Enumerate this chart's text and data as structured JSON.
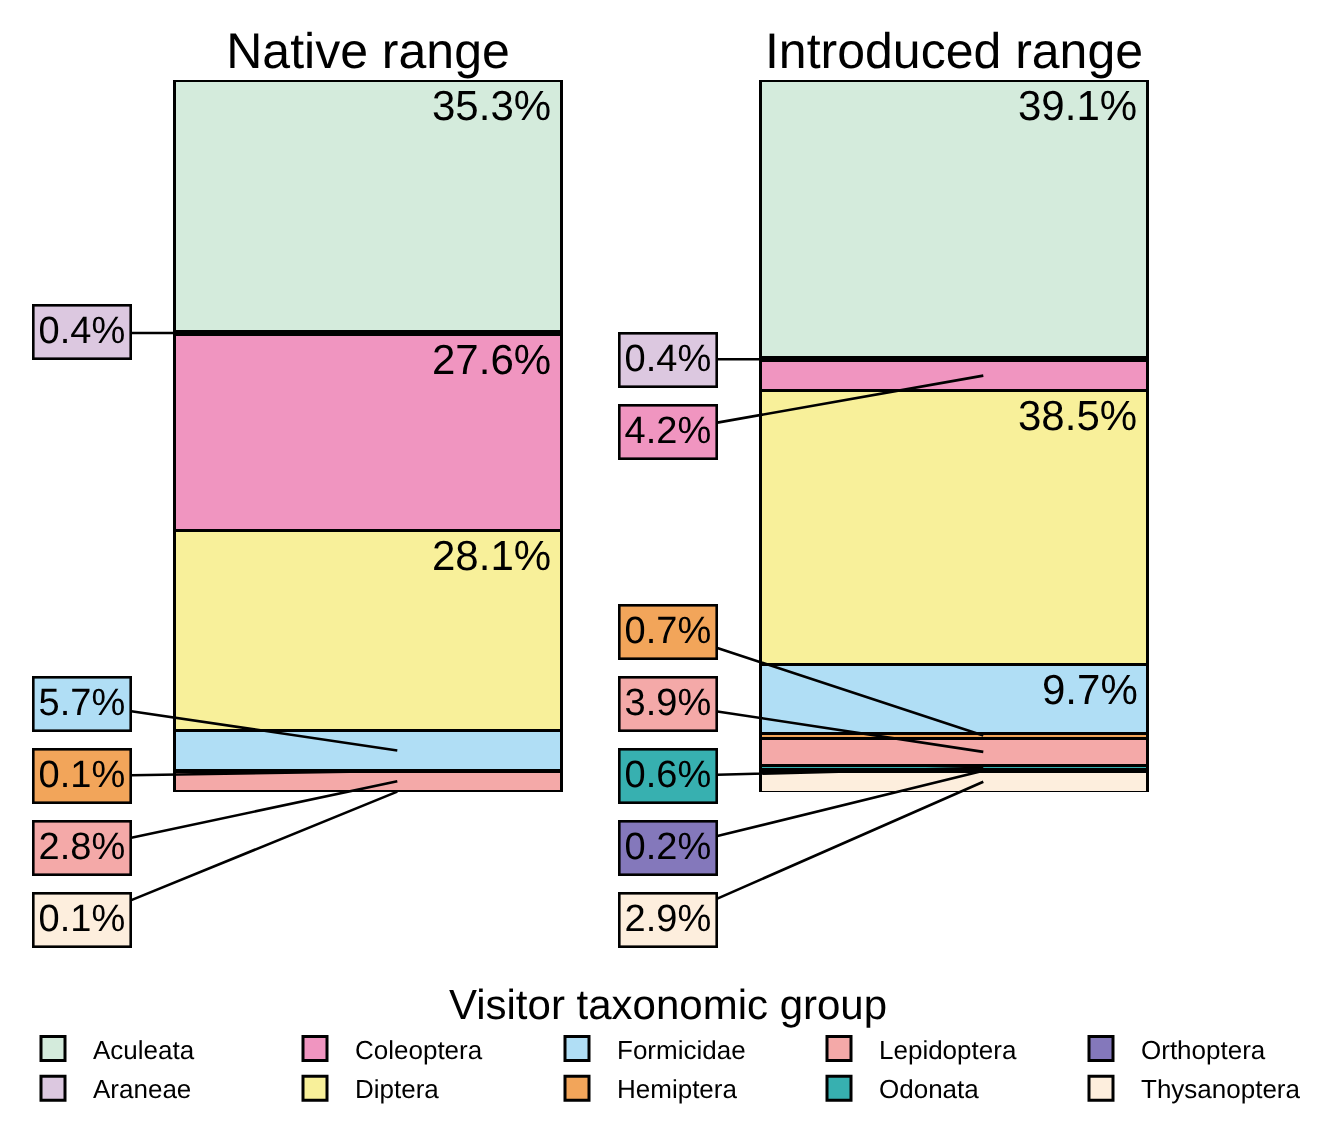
{
  "chart_data": {
    "type": "bar",
    "stacked": true,
    "legend": "bottom",
    "legend_title": "Visitor taxonomic group",
    "tick_labels": "x",
    "categories": [
      "Native range",
      "Introduced range"
    ],
    "series": [
      {
        "name": "Thysanoptera",
        "color": "#fdeedd",
        "values": [
          0.1,
          2.9
        ],
        "value_labels": [
          "0.1%",
          "2.9%"
        ]
      },
      {
        "name": "Orthoptera",
        "color": "#8478bb",
        "values": [
          null,
          0.2
        ],
        "value_labels": [
          null,
          "0.2%"
        ]
      },
      {
        "name": "Odonata",
        "color": "#37b0b0",
        "values": [
          null,
          0.6
        ],
        "value_labels": [
          null,
          "0.6%"
        ]
      },
      {
        "name": "Lepidoptera",
        "color": "#f4a9a8",
        "values": [
          2.8,
          3.9
        ],
        "value_labels": [
          "2.8%",
          "3.9%"
        ]
      },
      {
        "name": "Hemiptera",
        "color": "#f2a55a",
        "values": [
          0.1,
          0.7
        ],
        "value_labels": [
          "0.1%",
          "0.7%"
        ]
      },
      {
        "name": "Formicidae",
        "color": "#b0def5",
        "values": [
          5.7,
          9.7
        ],
        "value_labels": [
          "5.7%",
          "9.7%"
        ]
      },
      {
        "name": "Diptera",
        "color": "#f8f09a",
        "values": [
          28.1,
          38.5
        ],
        "value_labels": [
          "28.1%",
          "38.5%"
        ]
      },
      {
        "name": "Coleoptera",
        "color": "#f095c0",
        "values": [
          27.6,
          4.2
        ],
        "value_labels": [
          "27.6%",
          "4.2%"
        ]
      },
      {
        "name": "Araneae",
        "color": "#dcc8e0",
        "values": [
          0.4,
          0.4
        ],
        "value_labels": [
          "0.4%",
          "0.4%"
        ]
      },
      {
        "name": "Aculeata",
        "color": "#d4ebdc",
        "values": [
          35.3,
          39.1
        ],
        "value_labels": [
          "35.3%",
          "39.1%"
        ]
      }
    ]
  }
}
